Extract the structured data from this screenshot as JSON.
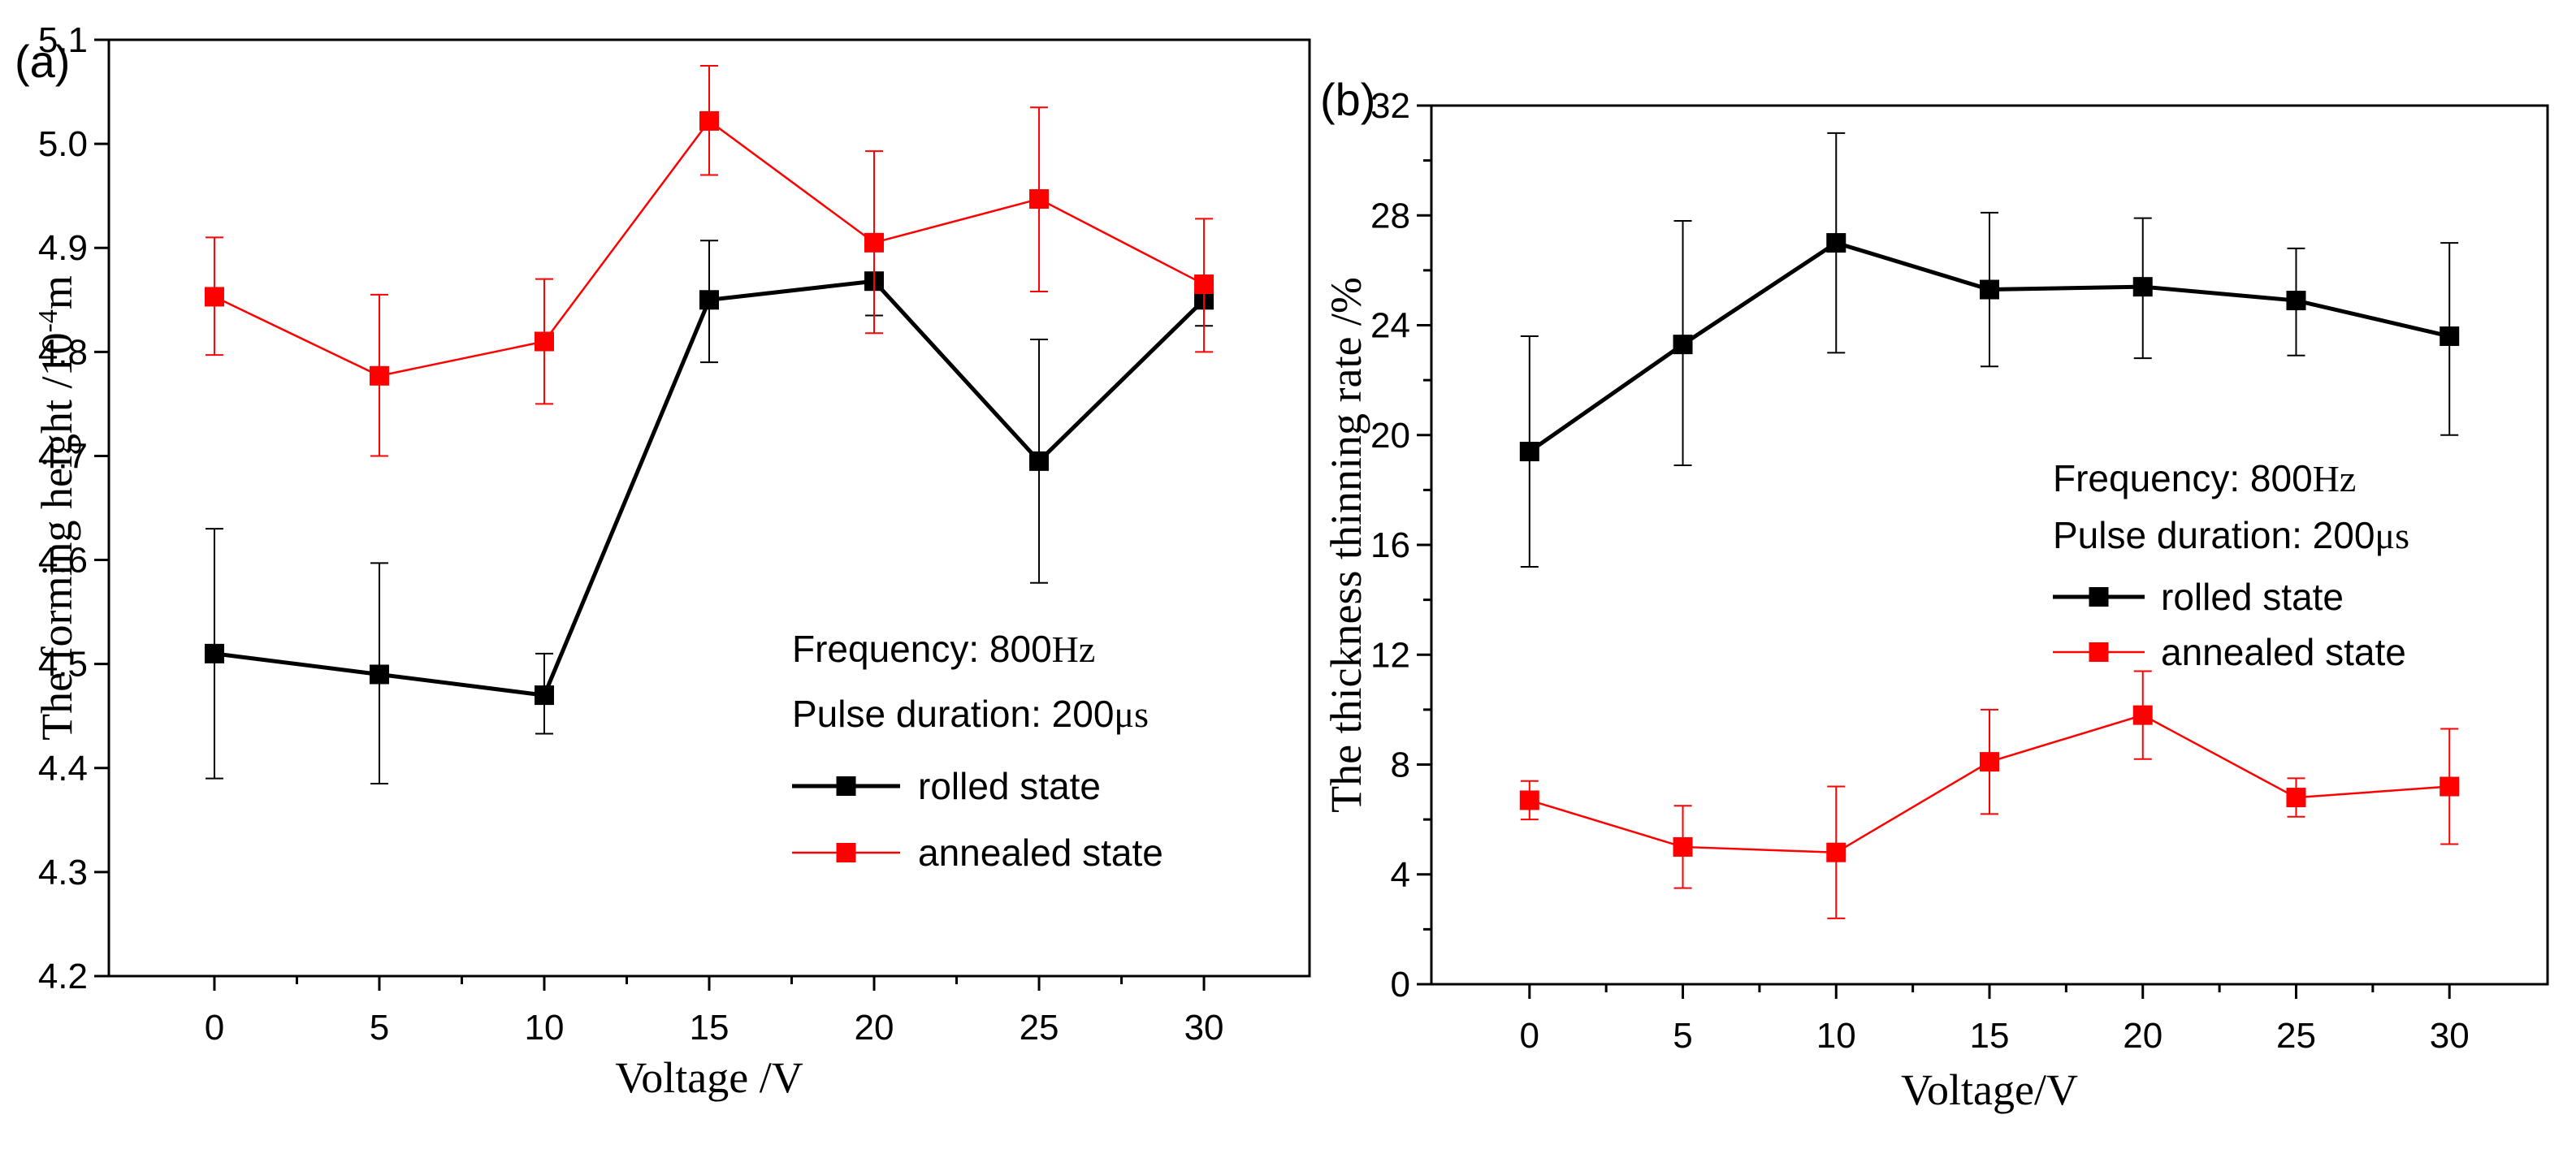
{
  "chart_data": [
    {
      "type": "line",
      "panel_label": "(a)",
      "title": "",
      "xlabel": "Voltage /V",
      "ylabel_main": "The forming height /10",
      "ylabel_exp": "-4",
      "ylabel_unit": "m",
      "x": [
        0,
        5,
        10,
        15,
        20,
        25,
        30
      ],
      "xlim": [
        -3.2,
        33.2
      ],
      "ylim": [
        4.2,
        5.1
      ],
      "xticks": [
        "0",
        "5",
        "10",
        "15",
        "20",
        "25",
        "30"
      ],
      "yticks": [
        "4.2",
        "4.3",
        "4.4",
        "4.5",
        "4.6",
        "4.7",
        "4.8",
        "4.9",
        "5.0",
        "5.1"
      ],
      "annotation": {
        "freq_label": "Frequency: ",
        "freq_value": "800",
        "freq_unit": "Hz",
        "pulse_label": "Pulse duration: ",
        "pulse_value": "200",
        "pulse_unit": "μs"
      },
      "series": [
        {
          "name": "rolled state",
          "color": "#000000",
          "values": [
            4.51,
            4.49,
            4.47,
            4.85,
            4.868,
            4.695,
            4.85
          ],
          "err_low": [
            4.39,
            4.385,
            4.433,
            4.79,
            4.835,
            4.578,
            4.825
          ],
          "err_high": [
            4.63,
            4.597,
            4.51,
            4.907,
            4.87,
            4.812,
            4.87
          ]
        },
        {
          "name": "annealed state",
          "color": "#ff0000",
          "values": [
            4.853,
            4.777,
            4.81,
            5.022,
            4.905,
            4.947,
            4.865
          ],
          "err_low": [
            4.797,
            4.7,
            4.75,
            4.97,
            4.818,
            4.858,
            4.8
          ],
          "err_high": [
            4.91,
            4.855,
            4.87,
            5.075,
            4.993,
            5.035,
            4.928
          ]
        }
      ]
    },
    {
      "type": "line",
      "panel_label": "(b)",
      "title": "",
      "xlabel": "Voltage/V",
      "ylabel_main": "The thickness thinning rate /%",
      "x": [
        0,
        5,
        10,
        15,
        20,
        25,
        30
      ],
      "xlim": [
        -3.2,
        33.2
      ],
      "ylim": [
        0,
        32
      ],
      "xticks": [
        "0",
        "5",
        "10",
        "15",
        "20",
        "25",
        "30"
      ],
      "yticks": [
        "0",
        "4",
        "8",
        "12",
        "16",
        "20",
        "24",
        "28",
        "32"
      ],
      "annotation": {
        "freq_label": "Frequency: ",
        "freq_value": "800",
        "freq_unit": "Hz",
        "pulse_label": "Pulse duration: ",
        "pulse_value": "200",
        "pulse_unit": "μs"
      },
      "series": [
        {
          "name": "rolled state",
          "color": "#000000",
          "values": [
            19.4,
            23.3,
            27.0,
            25.3,
            25.4,
            24.9,
            23.6
          ],
          "err_low": [
            15.2,
            18.9,
            23.0,
            22.5,
            22.8,
            22.9,
            20.0
          ],
          "err_high": [
            23.6,
            27.8,
            31.0,
            28.1,
            27.9,
            26.8,
            27.0
          ]
        },
        {
          "name": "annealed state",
          "color": "#ff0000",
          "values": [
            6.7,
            5.0,
            4.8,
            8.1,
            9.8,
            6.8,
            7.2
          ],
          "err_low": [
            6.0,
            3.5,
            2.4,
            6.2,
            8.2,
            6.1,
            5.1
          ],
          "err_high": [
            7.4,
            6.5,
            7.2,
            10.0,
            11.4,
            7.5,
            9.3
          ]
        }
      ]
    }
  ]
}
